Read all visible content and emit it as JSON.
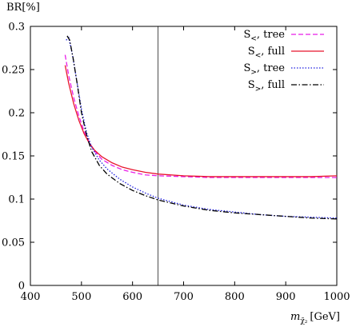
{
  "chart_data": {
    "type": "line",
    "ylabel": "BR[%]",
    "xlabel": "m_{χ̃2} [GeV]",
    "xlabel_main": "m",
    "xlabel_sub": "χ̃₂",
    "xlabel_unit": "[GeV]",
    "xlim": [
      400,
      1000
    ],
    "ylim": [
      0,
      0.3
    ],
    "x_ticks": [
      400,
      500,
      600,
      700,
      800,
      900,
      1000
    ],
    "x_tick_labels": [
      "400",
      "500",
      "600",
      "700",
      "800",
      "900",
      "1000"
    ],
    "y_ticks": [
      0,
      0.05,
      0.1,
      0.15,
      0.2,
      0.25,
      0.3
    ],
    "y_tick_labels": [
      "0",
      "0.05",
      "0.1",
      "0.15",
      "0.2",
      "0.25",
      "0.3"
    ],
    "grid": false,
    "legend_position": "top-right",
    "vertical_line_x": 650,
    "series": [
      {
        "name": "S<, tree",
        "label_main": "S",
        "label_sub": "<",
        "label_rest": ", tree",
        "color": "#e81ce8",
        "dash": "6,3",
        "x": [
          468,
          475,
          485,
          495,
          505,
          515,
          525,
          540,
          560,
          580,
          600,
          625,
          650,
          700,
          750,
          800,
          850,
          900,
          950,
          1000
        ],
        "y": [
          0.267,
          0.243,
          0.217,
          0.196,
          0.179,
          0.166,
          0.156,
          0.146,
          0.139,
          0.134,
          0.131,
          0.128,
          0.127,
          0.126,
          0.125,
          0.125,
          0.125,
          0.125,
          0.125,
          0.125
        ]
      },
      {
        "name": "S<, full",
        "label_main": "S",
        "label_sub": "<",
        "label_rest": ", full",
        "color": "#e8142c",
        "dash": "",
        "x": [
          468,
          475,
          485,
          495,
          505,
          515,
          525,
          540,
          560,
          580,
          600,
          625,
          650,
          700,
          750,
          800,
          850,
          900,
          950,
          1000
        ],
        "y": [
          0.255,
          0.234,
          0.21,
          0.191,
          0.176,
          0.165,
          0.157,
          0.149,
          0.142,
          0.137,
          0.134,
          0.131,
          0.129,
          0.127,
          0.126,
          0.126,
          0.126,
          0.126,
          0.126,
          0.127
        ]
      },
      {
        "name": "S>, tree",
        "label_main": "S",
        "label_sub": ">",
        "label_rest": ", tree",
        "color": "#1e1ee0",
        "dash": "1.5,2",
        "x": [
          470,
          475,
          482,
          490,
          500,
          510,
          520,
          535,
          550,
          575,
          600,
          625,
          650,
          700,
          750,
          800,
          850,
          900,
          950,
          1000
        ],
        "y": [
          0.284,
          0.287,
          0.268,
          0.24,
          0.204,
          0.177,
          0.16,
          0.145,
          0.135,
          0.123,
          0.114,
          0.107,
          0.101,
          0.093,
          0.088,
          0.085,
          0.082,
          0.08,
          0.079,
          0.078
        ]
      },
      {
        "name": "S>, full",
        "label_main": "S",
        "label_sub": ">",
        "label_rest": ", full",
        "color": "#000000",
        "dash": "7,2.5,1.5,2.5",
        "x": [
          472,
          477,
          484,
          492,
          500,
          510,
          520,
          535,
          550,
          575,
          600,
          625,
          650,
          700,
          750,
          800,
          850,
          900,
          950,
          1000
        ],
        "y": [
          0.289,
          0.284,
          0.262,
          0.232,
          0.2,
          0.174,
          0.155,
          0.139,
          0.129,
          0.118,
          0.11,
          0.104,
          0.099,
          0.092,
          0.087,
          0.084,
          0.082,
          0.08,
          0.078,
          0.077
        ]
      }
    ]
  }
}
